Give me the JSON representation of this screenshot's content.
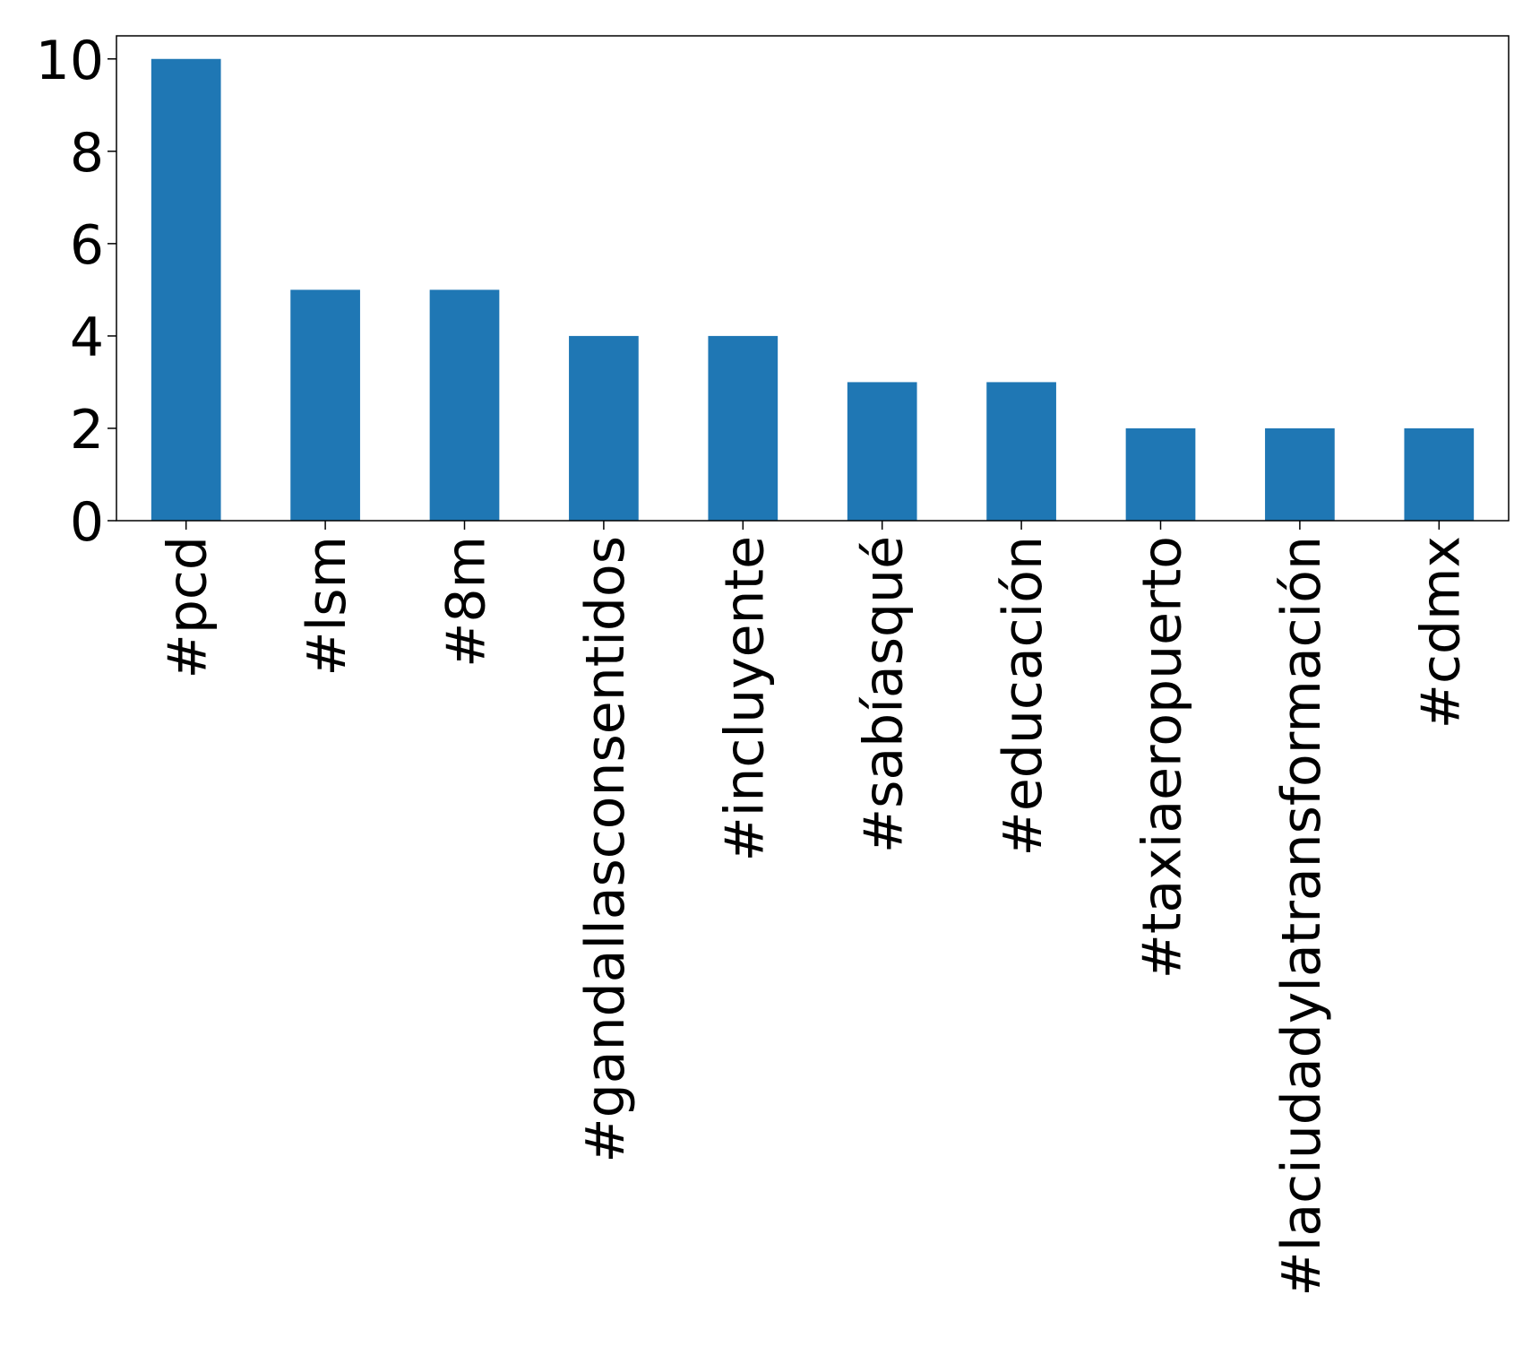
{
  "chart_data": {
    "type": "bar",
    "categories": [
      "#pcd",
      "#lsm",
      "#8m",
      "#gandallasconsentidos",
      "#incluyente",
      "#sabíasqué",
      "#educación",
      "#taxiaeropuerto",
      "#laciudadylatransformación",
      "#cdmx"
    ],
    "values": [
      10,
      5,
      5,
      4,
      4,
      3,
      3,
      2,
      2,
      2
    ],
    "yticks": [
      0,
      2,
      4,
      6,
      8,
      10
    ],
    "ylim": [
      0,
      10.5
    ],
    "bar_color": "#1f77b4",
    "title": "",
    "xlabel": "",
    "ylabel": "",
    "grid": false,
    "legend": "none"
  }
}
